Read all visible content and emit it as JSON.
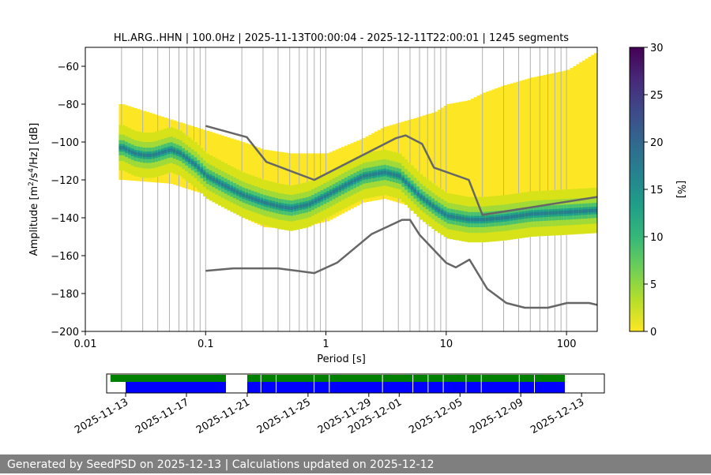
{
  "chart_data": {
    "type": "heatmap",
    "title": "HL.ARG..HHN | 100.0Hz | 2025-11-13T00:00:04 - 2025-12-11T22:00:01 | 1245 segments",
    "xlabel": "Period [s]",
    "ylabel_main": "Amplitude [m",
    "ylabel_sup1": "2",
    "ylabel_mid": "/s",
    "ylabel_sup2": "4",
    "ylabel_end": "/Hz] [dB]",
    "x_scale": "log",
    "xlim": [
      0.01,
      180
    ],
    "ylim": [
      -200,
      -50
    ],
    "x_ticks": [
      {
        "value": 0.01,
        "label": "0.01"
      },
      {
        "value": 0.1,
        "label": "0.1"
      },
      {
        "value": 1,
        "label": "1"
      },
      {
        "value": 10,
        "label": "10"
      },
      {
        "value": 100,
        "label": "100"
      }
    ],
    "y_ticks": [
      {
        "value": -60,
        "label": "−60"
      },
      {
        "value": -80,
        "label": "−80"
      },
      {
        "value": -100,
        "label": "−100"
      },
      {
        "value": -120,
        "label": "−120"
      },
      {
        "value": -140,
        "label": "−140"
      },
      {
        "value": -160,
        "label": "−160"
      },
      {
        "value": -180,
        "label": "−180"
      },
      {
        "value": -200,
        "label": "−200"
      }
    ],
    "grid_periods": [
      0.02,
      0.03,
      0.04,
      0.05,
      0.06,
      0.07,
      0.08,
      0.09,
      0.1,
      0.2,
      0.3,
      0.4,
      0.5,
      0.6,
      0.7,
      0.8,
      0.9,
      1,
      2,
      3,
      4,
      5,
      6,
      7,
      8,
      9,
      10,
      20,
      30,
      40,
      50,
      60,
      70,
      80,
      90,
      100
    ],
    "psd_mode": {
      "name": "mode",
      "x": [
        0.02,
        0.025,
        0.03,
        0.035,
        0.04,
        0.05,
        0.06,
        0.08,
        0.1,
        0.15,
        0.2,
        0.3,
        0.4,
        0.5,
        0.7,
        1,
        1.5,
        2,
        3,
        4,
        5,
        6,
        8,
        10,
        15,
        20,
        30,
        50,
        100,
        180
      ],
      "y": [
        -103,
        -106,
        -107,
        -107,
        -106,
        -104,
        -106,
        -112,
        -118,
        -124,
        -128,
        -132,
        -134,
        -135,
        -133,
        -128,
        -122,
        -118,
        -116,
        -118,
        -124,
        -129,
        -135,
        -139,
        -141,
        -141,
        -140,
        -138,
        -137,
        -136
      ]
    },
    "psd_spread": {
      "x": [
        0.02,
        0.05,
        0.1,
        0.2,
        0.3,
        0.5,
        1,
        2,
        3,
        5,
        8,
        10,
        15,
        20,
        30,
        50,
        100,
        180
      ],
      "low": [
        -120,
        -122,
        -128,
        -140,
        -145,
        -146,
        -142,
        -132,
        -130,
        -134,
        -142,
        -146,
        -150,
        -148,
        -147,
        -146,
        -143,
        -142
      ],
      "high": [
        -80,
        -88,
        -94,
        -100,
        -104,
        -106,
        -106,
        -98,
        -92,
        -88,
        -84,
        -80,
        -78,
        -74,
        -70,
        -66,
        -62,
        -52
      ]
    },
    "series": [
      {
        "name": "NHNM",
        "color": "#666666",
        "x": [
          0.1,
          0.22,
          0.32,
          0.8,
          3.8,
          4.6,
          6.3,
          7.9,
          15.4,
          20,
          180
        ],
        "y": [
          -91.5,
          -97.4,
          -110.5,
          -120,
          -98,
          -96.5,
          -101,
          -113.5,
          -120,
          -138.5,
          -129
        ]
      },
      {
        "name": "NLNM",
        "color": "#666666",
        "x": [
          0.1,
          0.17,
          0.4,
          0.8,
          1.24,
          2.4,
          4.3,
          5,
          6,
          10,
          12,
          15.6,
          21.9,
          31.6,
          45,
          70,
          101,
          154,
          180
        ],
        "y": [
          -168,
          -166.7,
          -166.7,
          -169.2,
          -163.7,
          -148.6,
          -141.1,
          -141.1,
          -149,
          -163.8,
          -166.2,
          -162.1,
          -177.5,
          -185,
          -187.5,
          -187.5,
          -185,
          -185,
          -186
        ]
      }
    ],
    "colorbar": {
      "label": "[%]",
      "range": [
        0,
        30
      ],
      "ticks": [
        "0",
        "5",
        "10",
        "15",
        "20",
        "25",
        "30"
      ],
      "colors": [
        "#fde725",
        "#b5de2b",
        "#6ece58",
        "#35b779",
        "#1f9e89",
        "#26828e",
        "#31688e",
        "#3e4989",
        "#482878",
        "#440154"
      ]
    }
  },
  "coverage": {
    "dates": [
      "2025-11-13",
      "2025-11-17",
      "2025-11-21",
      "2025-11-25",
      "2025-11-29",
      "2025-12-01",
      "2025-12-05",
      "2025-12-09",
      "2025-12-13"
    ],
    "axis_range_days": [
      -1.25,
      31.5
    ],
    "data_blocks": [
      {
        "start_day": 0.0,
        "end_day": 6.6
      },
      {
        "start_day": 8.0,
        "end_day": 28.9
      }
    ],
    "psd_blocks": [
      {
        "start_day": -1.0,
        "end_day": 6.6
      },
      {
        "start_day": 8.0,
        "end_day": 28.9
      }
    ],
    "gap_days": [
      8.9,
      9.9,
      12.4,
      13.4,
      16.9,
      18.9,
      19.9,
      20.9,
      22.4,
      23.4,
      25.9,
      26.9
    ],
    "data_color": "#0000ff",
    "psd_color": "#008000"
  },
  "footer": {
    "text": "Generated by SeedPSD on 2025-12-13 | Calculations updated on 2025-12-12"
  }
}
